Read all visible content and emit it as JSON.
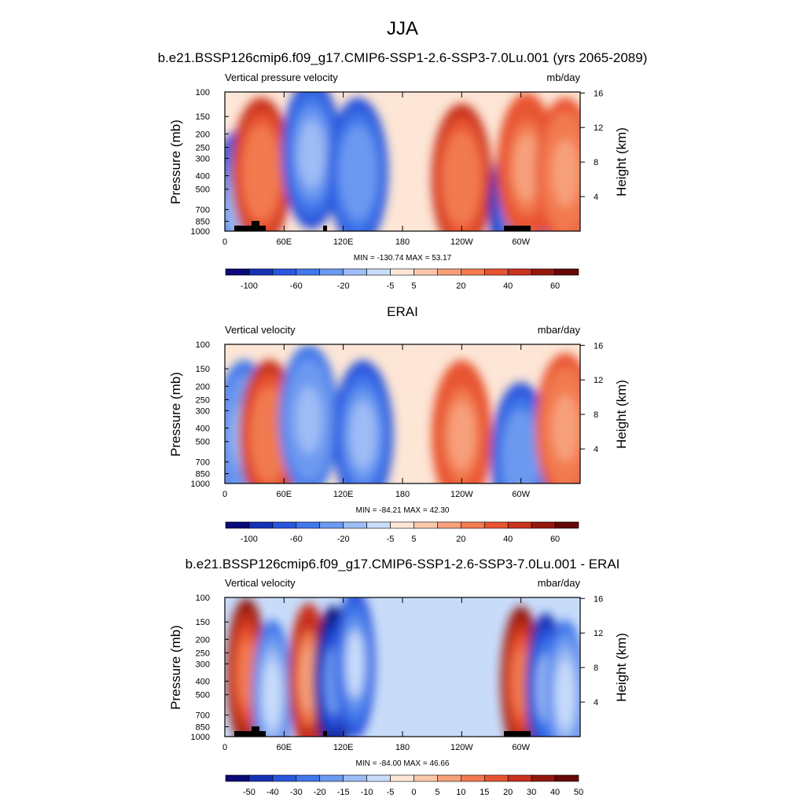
{
  "figure": {
    "title": "JJA",
    "subtitle": "b.e21.BSSP126cmip6.f09_g17.CMIP6-SSP1-2.6-SSP3-7.0Lu.001 (yrs 2065-2089)",
    "middle_title": "ERAI",
    "bottom_title": "b.e21.BSSP126cmip6.f09_g17.CMIP6-SSP1-2.6-SSP3-7.0Lu.001 - ERAI"
  },
  "chart_data": [
    {
      "type": "heatmap",
      "left_label": "Vertical pressure velocity",
      "right_label": "mb/day",
      "ylabel": "Pressure (mb)",
      "y2label": "Height (km)",
      "x_ticks": [
        "0",
        "60E",
        "120E",
        "180",
        "120W",
        "60W"
      ],
      "y_ticks": [
        "100",
        "150",
        "200",
        "250",
        "300",
        "400",
        "500",
        "700",
        "850",
        "1000"
      ],
      "y2_ticks": [
        "16",
        "12",
        "8",
        "4"
      ],
      "stats": "MIN = -130.74  MAX =  53.17",
      "min": -130.74,
      "max": 53.17,
      "colorbar_labels": [
        "-100",
        "-60",
        "-20",
        "-5",
        "5",
        "20",
        "40",
        "60"
      ],
      "features": [
        {
          "lon": 15,
          "p": 650,
          "value": -60
        },
        {
          "lon": 37,
          "p": 380,
          "value": 40
        },
        {
          "lon": 88,
          "p": 280,
          "value": -60
        },
        {
          "lon": 135,
          "p": 380,
          "value": -70
        },
        {
          "lon": 240,
          "p": 420,
          "value": 35
        },
        {
          "lon": 298,
          "p": 700,
          "value": -80
        },
        {
          "lon": 306,
          "p": 350,
          "value": 30
        },
        {
          "lon": 345,
          "p": 380,
          "value": 25
        }
      ]
    },
    {
      "type": "heatmap",
      "left_label": "Vertical velocity",
      "right_label": "mbar/day",
      "ylabel": "Pressure (mb)",
      "y2label": "Height (km)",
      "x_ticks": [
        "0",
        "60E",
        "120E",
        "180",
        "120W",
        "60W"
      ],
      "y_ticks": [
        "100",
        "150",
        "200",
        "250",
        "300",
        "400",
        "500",
        "700",
        "850",
        "1000"
      ],
      "y2_ticks": [
        "16",
        "12",
        "8",
        "4"
      ],
      "stats": "MIN = -84.21  MAX =  42.30",
      "min": -84.21,
      "max": 42.3,
      "colorbar_labels": [
        "-100",
        "-60",
        "-20",
        "-5",
        "5",
        "20",
        "40",
        "60"
      ],
      "features": [
        {
          "lon": 20,
          "p": 450,
          "value": -40
        },
        {
          "lon": 45,
          "p": 450,
          "value": 35
        },
        {
          "lon": 85,
          "p": 350,
          "value": -40
        },
        {
          "lon": 140,
          "p": 450,
          "value": -60
        },
        {
          "lon": 240,
          "p": 450,
          "value": 30
        },
        {
          "lon": 300,
          "p": 650,
          "value": -70
        },
        {
          "lon": 345,
          "p": 400,
          "value": 25
        }
      ]
    },
    {
      "type": "heatmap",
      "left_label": "Vertical velocity",
      "right_label": "mbar/day",
      "ylabel": "Pressure (mb)",
      "y2label": "Height (km)",
      "x_ticks": [
        "0",
        "60E",
        "120E",
        "180",
        "120W",
        "60W"
      ],
      "y_ticks": [
        "100",
        "150",
        "200",
        "250",
        "300",
        "400",
        "500",
        "700",
        "850",
        "1000"
      ],
      "y2_ticks": [
        "16",
        "12",
        "8",
        "4"
      ],
      "stats": "MIN = -84.00  MAX =  46.66",
      "min": -84.0,
      "max": 46.66,
      "colorbar_labels": [
        "-50",
        "-40",
        "-30",
        "-20",
        "-15",
        "-10",
        "-5",
        "0",
        "5",
        "10",
        "15",
        "20",
        "30",
        "40",
        "50"
      ],
      "features": [
        {
          "lon": 22,
          "p": 350,
          "value": 40
        },
        {
          "lon": 48,
          "p": 500,
          "value": -20
        },
        {
          "lon": 85,
          "p": 380,
          "value": 30
        },
        {
          "lon": 110,
          "p": 400,
          "value": -60
        },
        {
          "lon": 132,
          "p": 300,
          "value": -30
        },
        {
          "lon": 300,
          "p": 400,
          "value": 40
        },
        {
          "lon": 325,
          "p": 450,
          "value": -40
        },
        {
          "lon": 345,
          "p": 500,
          "value": -25
        }
      ]
    }
  ],
  "palette": [
    "#0a0a78",
    "#1631b4",
    "#2a55dc",
    "#4177ea",
    "#6c99f0",
    "#9ebcf5",
    "#c8dcfa",
    "#fde6d6",
    "#fbc7aa",
    "#f7a07c",
    "#f27a50",
    "#e85432",
    "#c8321e",
    "#94180e",
    "#640808"
  ]
}
